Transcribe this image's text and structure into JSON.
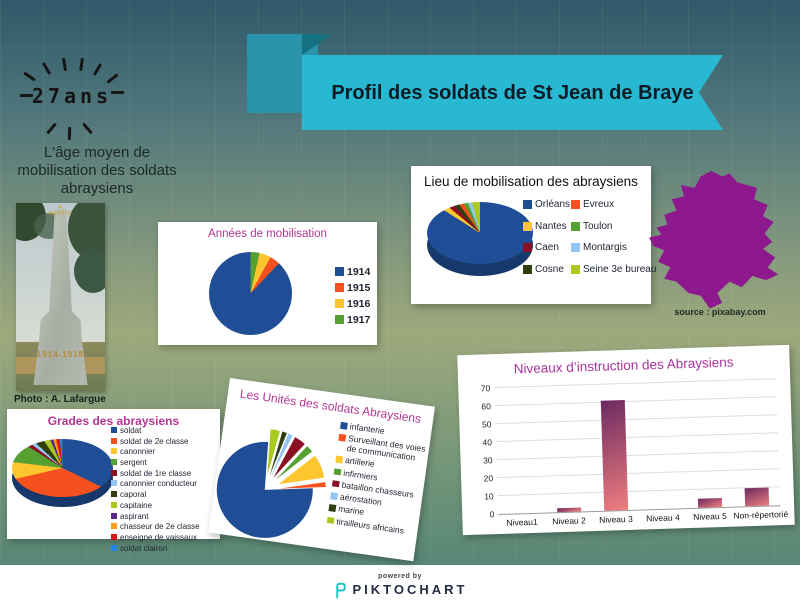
{
  "header": {
    "title": "Profil des soldats de St Jean de Braye",
    "banner_color": "#29b8d1",
    "square_color": "#2b93a9"
  },
  "age_callout": {
    "value": "27ans",
    "caption": "L'âge moyen de mobilisation des soldats abraysiens"
  },
  "photo": {
    "caption": "Photo : A. Lafargue",
    "monument_title": "PATRIE",
    "monument_star": "★",
    "monument_dates": "1914-1918"
  },
  "map": {
    "region": "France",
    "color": "#8e188e",
    "source": "source : pixabay.com"
  },
  "footer": {
    "powered_by": "powered by",
    "brand": "PIKTOCHART",
    "brand_icon_color": "#22c4c6"
  },
  "chart_data": [
    {
      "id": "annees",
      "type": "pie",
      "title": "Années de mobilisation",
      "labels": [
        "1914",
        "1915",
        "1916",
        "1917"
      ],
      "values": [
        88,
        4,
        4.5,
        3.5
      ],
      "colors": [
        "#1f4e96",
        "#f4511e",
        "#fdc62f",
        "#56a032"
      ],
      "legend_position": "right",
      "draw_order": "reversed"
    },
    {
      "id": "lieu",
      "type": "pie",
      "variant": "3d",
      "title": "Lieu de mobilisation des abraysiens",
      "labels": [
        "Orléans",
        "Nantes",
        "Caen",
        "Cosne",
        "Evreux",
        "Toulon",
        "Montargis",
        "Seine 3e bureau"
      ],
      "values": [
        84,
        2,
        2,
        2,
        2,
        2,
        2,
        4
      ],
      "colors": [
        "#1f4e96",
        "#fdc62f",
        "#8c1023",
        "#2f3e0c",
        "#f4511e",
        "#56a032",
        "#92c5f3",
        "#a9ca1d"
      ],
      "legend_position": "right-two-columns"
    },
    {
      "id": "grades",
      "type": "pie",
      "variant": "3d",
      "title": "Grades des abraysiens",
      "labels": [
        "soldat",
        "soldat de 2e classe",
        "canonnier",
        "sergent",
        "soldat de 1re classe",
        "canonnier conducteur",
        "caporal",
        "capitaine",
        "aspirant",
        "chasseur de 2e classe",
        "enseigne de vaissaux",
        "soldat clairon"
      ],
      "values": [
        32,
        39,
        5.5,
        7,
        1.5,
        1.5,
        3.5,
        3,
        1.5,
        1.5,
        2,
        1.5
      ],
      "colors": [
        "#1f4e96",
        "#f4511e",
        "#fdc62f",
        "#56a032",
        "#8c1023",
        "#92c5f3",
        "#2f3e0c",
        "#a9ca1d",
        "#55268a",
        "#f9a01b",
        "#d71a15",
        "#1d86e0"
      ],
      "legend_position": "right"
    },
    {
      "id": "unites",
      "type": "pie",
      "variant": "exploded",
      "title": "Les Unités des soldats Abraysiens",
      "labels": [
        "infanterie",
        "Surveillant des voies de communication",
        "artillerie",
        "infirmiers",
        "bataillon chasseurs",
        "aérostation",
        "marine",
        "tirailleurs africains"
      ],
      "values": [
        86,
        1,
        5,
        1.5,
        2.5,
        1,
        1,
        2
      ],
      "colors": [
        "#1f4e96",
        "#f4511e",
        "#fdc62f",
        "#56a032",
        "#8c1023",
        "#92c5f3",
        "#2f3e0c",
        "#a9ca1d"
      ],
      "explode_opening_deg": [
        10,
        94
      ],
      "legend_position": "right"
    },
    {
      "id": "instruction",
      "type": "bar",
      "title": "Niveaux d’instruction des Abraysiens",
      "categories": [
        "Niveau1",
        "Niveau 2",
        "Niveau 3",
        "Niveau 4",
        "Niveau 5",
        "Non-répertorié"
      ],
      "values": [
        0,
        2,
        61,
        0,
        5,
        10
      ],
      "ylabel": "",
      "xlabel": "",
      "ylim": [
        0,
        70
      ],
      "ytick_step": 10,
      "grid": true,
      "bar_gradient": [
        "#6b2a60",
        "#ef7e80"
      ]
    }
  ]
}
